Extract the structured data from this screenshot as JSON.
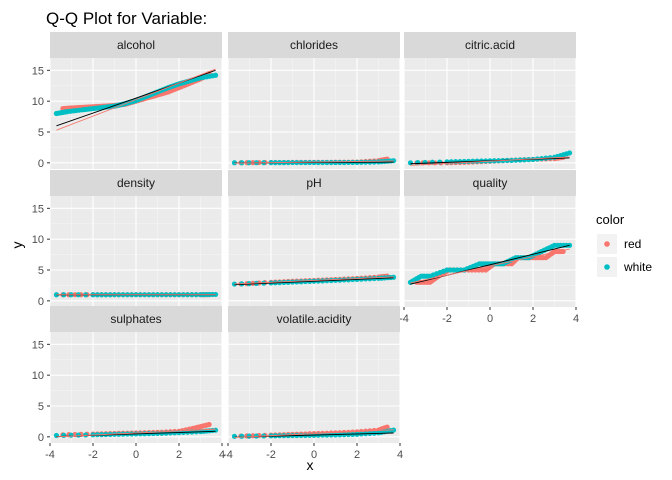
{
  "chart_data": {
    "type": "scatter",
    "title": "Q-Q Plot for Variable:",
    "xlabel": "x",
    "ylabel": "y",
    "xlim": [
      -4,
      4
    ],
    "ylim": [
      -1,
      17
    ],
    "x_ticks": [
      -4,
      -2,
      0,
      2,
      4
    ],
    "y_ticks": [
      0,
      5,
      10,
      15
    ],
    "grid": true,
    "legend": {
      "title": "color",
      "placement": "right",
      "entries": [
        {
          "name": "red",
          "color": "#F8766D"
        },
        {
          "name": "white",
          "color": "#00BFC4"
        }
      ]
    },
    "line_colors": {
      "red": "#F8766D",
      "white": "#000000"
    },
    "panels": [
      {
        "name": "alcohol",
        "series": [
          {
            "name": "red",
            "x": [
              -3.4,
              -3.0,
              -2.5,
              -2.0,
              -1.5,
              -1.0,
              -0.5,
              0.0,
              0.5,
              1.0,
              1.5,
              2.0,
              2.5,
              3.0,
              3.4
            ],
            "y": [
              8.8,
              8.9,
              9.0,
              9.1,
              9.2,
              9.3,
              9.5,
              10.0,
              10.5,
              11.0,
              11.5,
              12.2,
              12.9,
              13.6,
              14.5
            ]
          },
          {
            "name": "white",
            "x": [
              -3.7,
              -3.2,
              -2.5,
              -2.0,
              -1.5,
              -1.0,
              -0.5,
              0.0,
              0.5,
              1.0,
              1.5,
              2.0,
              2.5,
              3.0,
              3.7
            ],
            "y": [
              8.0,
              8.3,
              8.6,
              8.8,
              9.0,
              9.2,
              9.6,
              10.1,
              10.8,
              11.5,
              12.2,
              12.8,
              13.3,
              13.8,
              14.2
            ]
          }
        ],
        "lines": {
          "red": [
            [
              -3.7,
              5.3
            ],
            [
              3.7,
              15.2
            ]
          ],
          "white": [
            [
              -3.7,
              6.0
            ],
            [
              3.7,
              15.0
            ]
          ]
        }
      },
      {
        "name": "chlorides",
        "series": [
          {
            "name": "red",
            "x": [
              -3.4,
              -2.0,
              -1.0,
              0.0,
              1.0,
              2.0,
              3.0,
              3.4
            ],
            "y": [
              0.02,
              0.06,
              0.07,
              0.08,
              0.09,
              0.12,
              0.35,
              0.6
            ]
          },
          {
            "name": "white",
            "x": [
              -3.7,
              -2.0,
              -1.0,
              0.0,
              1.0,
              2.0,
              3.0,
              3.7
            ],
            "y": [
              0.01,
              0.03,
              0.04,
              0.045,
              0.05,
              0.07,
              0.15,
              0.35
            ]
          }
        ],
        "lines": {
          "red": [
            [
              -3.7,
              -0.05
            ],
            [
              3.7,
              0.3
            ]
          ],
          "white": [
            [
              -3.7,
              -0.02
            ],
            [
              3.7,
              0.12
            ]
          ]
        }
      },
      {
        "name": "citric.acid",
        "series": [
          {
            "name": "red",
            "x": [
              -3.4,
              -2.0,
              -1.0,
              0.0,
              1.0,
              2.0,
              3.0,
              3.4
            ],
            "y": [
              0.0,
              0.0,
              0.1,
              0.26,
              0.42,
              0.56,
              0.7,
              0.9
            ]
          },
          {
            "name": "white",
            "x": [
              -3.7,
              -2.0,
              -1.0,
              0.0,
              1.0,
              2.0,
              3.0,
              3.7
            ],
            "y": [
              0.0,
              0.15,
              0.25,
              0.32,
              0.4,
              0.55,
              0.9,
              1.6
            ]
          }
        ],
        "lines": {
          "red": [
            [
              -3.7,
              -0.4
            ],
            [
              3.7,
              0.95
            ]
          ],
          "white": [
            [
              -3.7,
              -0.15
            ],
            [
              3.7,
              0.8
            ]
          ]
        }
      },
      {
        "name": "density",
        "series": [
          {
            "name": "red",
            "x": [
              -3.4,
              -2.0,
              -1.0,
              0.0,
              1.0,
              2.0,
              3.0,
              3.4
            ],
            "y": [
              0.99,
              0.993,
              0.995,
              0.997,
              0.998,
              1.0,
              1.002,
              1.004
            ]
          },
          {
            "name": "white",
            "x": [
              -3.7,
              -2.0,
              -1.0,
              0.0,
              1.0,
              2.0,
              3.0,
              3.7
            ],
            "y": [
              0.987,
              0.989,
              0.991,
              0.994,
              0.997,
              0.999,
              1.002,
              1.039
            ]
          }
        ],
        "lines": {
          "red": [
            [
              -3.7,
              0.99
            ],
            [
              3.7,
              1.003
            ]
          ],
          "white": [
            [
              -3.7,
              0.986
            ],
            [
              3.7,
              1.002
            ]
          ]
        }
      },
      {
        "name": "pH",
        "series": [
          {
            "name": "red",
            "x": [
              -3.4,
              -2.0,
              -1.0,
              0.0,
              1.0,
              2.0,
              3.0,
              3.4
            ],
            "y": [
              2.74,
              3.0,
              3.17,
              3.31,
              3.46,
              3.62,
              3.85,
              4.01
            ]
          },
          {
            "name": "white",
            "x": [
              -3.7,
              -2.0,
              -1.0,
              0.0,
              1.0,
              2.0,
              3.0,
              3.7
            ],
            "y": [
              2.72,
              2.9,
              3.04,
              3.18,
              3.33,
              3.48,
              3.65,
              3.82
            ]
          }
        ],
        "lines": {
          "red": [
            [
              -3.7,
              2.74
            ],
            [
              3.7,
              3.88
            ]
          ],
          "white": [
            [
              -3.7,
              2.62
            ],
            [
              3.7,
              3.74
            ]
          ]
        }
      },
      {
        "name": "quality",
        "series": [
          {
            "name": "red",
            "x": [
              -3.4,
              -2.8,
              -2.4,
              -1.9,
              -1.0,
              -0.2,
              0.2,
              1.0,
              1.3,
              2.0,
              2.6,
              3.0,
              3.4
            ],
            "y": [
              3,
              3,
              4,
              5,
              5,
              5,
              6,
              6,
              7,
              7,
              7,
              8,
              8
            ]
          },
          {
            "name": "white",
            "x": [
              -3.7,
              -3.2,
              -2.8,
              -2.0,
              -1.2,
              -0.5,
              0.0,
              0.6,
              1.2,
              1.8,
              2.4,
              3.0,
              3.7
            ],
            "y": [
              3,
              4,
              4,
              5,
              5,
              6,
              6,
              6,
              7,
              7,
              8,
              9,
              9
            ]
          }
        ],
        "lines": {
          "red": [
            [
              -3.7,
              2.9
            ],
            [
              3.7,
              8.4
            ]
          ],
          "white": [
            [
              -3.7,
              2.7
            ],
            [
              3.7,
              9.0
            ]
          ]
        }
      },
      {
        "name": "sulphates",
        "series": [
          {
            "name": "red",
            "x": [
              -3.4,
              -2.0,
              -1.0,
              0.0,
              1.0,
              2.0,
              2.8,
              3.4
            ],
            "y": [
              0.33,
              0.45,
              0.55,
              0.62,
              0.72,
              0.9,
              1.5,
              2.0
            ]
          },
          {
            "name": "white",
            "x": [
              -3.7,
              -2.0,
              -1.0,
              0.0,
              1.0,
              2.0,
              3.0,
              3.7
            ],
            "y": [
              0.22,
              0.33,
              0.41,
              0.47,
              0.55,
              0.68,
              0.85,
              1.08
            ]
          }
        ],
        "lines": {
          "red": [
            [
              -3.7,
              0.0
            ],
            [
              3.7,
              1.25
            ]
          ],
          "white": [
            [
              -3.7,
              0.05
            ],
            [
              3.7,
              0.9
            ]
          ]
        }
      },
      {
        "name": "volatile.acidity",
        "series": [
          {
            "name": "red",
            "x": [
              -3.4,
              -2.0,
              -1.0,
              0.0,
              1.0,
              2.0,
              3.0,
              3.4
            ],
            "y": [
              0.12,
              0.28,
              0.4,
              0.52,
              0.64,
              0.8,
              1.1,
              1.58
            ]
          },
          {
            "name": "white",
            "x": [
              -3.7,
              -2.0,
              -1.0,
              0.0,
              1.0,
              2.0,
              3.0,
              3.7
            ],
            "y": [
              0.08,
              0.16,
              0.21,
              0.26,
              0.32,
              0.42,
              0.65,
              1.1
            ]
          }
        ],
        "lines": {
          "red": [
            [
              -3.7,
              -0.1
            ],
            [
              3.7,
              1.15
            ]
          ],
          "white": [
            [
              -3.7,
              -0.05
            ],
            [
              3.7,
              0.62
            ]
          ]
        }
      }
    ]
  }
}
